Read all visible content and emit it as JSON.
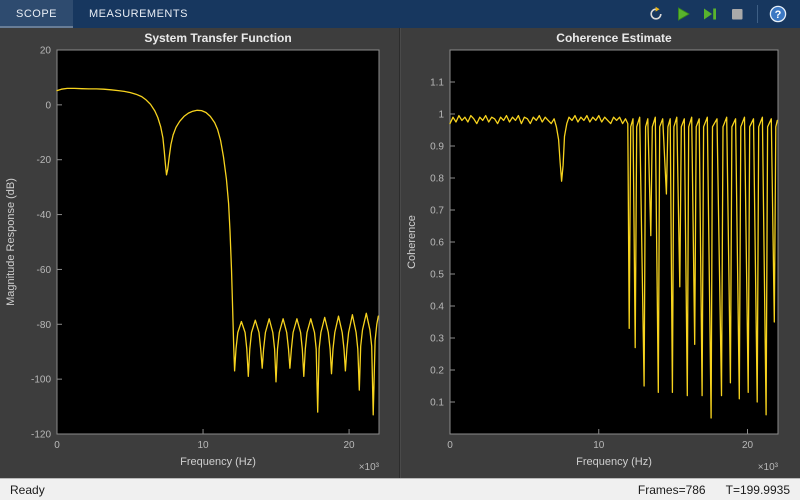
{
  "toolbar": {
    "tabs": [
      {
        "label": "SCOPE",
        "active": true
      },
      {
        "label": "MEASUREMENTS",
        "active": false
      }
    ],
    "buttons": [
      {
        "name": "replay"
      },
      {
        "name": "run"
      },
      {
        "name": "step-forward"
      },
      {
        "name": "stop"
      },
      {
        "name": "help"
      }
    ],
    "help_label": "?"
  },
  "statusbar": {
    "ready": "Ready",
    "frames": "Frames=786",
    "time": "T=199.9935"
  },
  "colors": {
    "trace_yellow": "#f7d31e",
    "toolbar_blue": "#17375f",
    "plot_background": "#000000",
    "panel_background": "#3d3d3d",
    "run_green": "#58b32d",
    "help_blue": "#3c78c3",
    "status_gray": "#f0f0f0"
  },
  "chart_data": [
    {
      "type": "line",
      "title": "System Transfer Function",
      "xlabel": "Frequency (Hz)",
      "ylabel": "Magnitude Response (dB)",
      "x_scale_label": "×10³",
      "xlim": [
        0,
        22.05
      ],
      "ylim": [
        -120,
        20
      ],
      "xticks": [
        0,
        10,
        20
      ],
      "yticks": [
        20,
        0,
        -20,
        -40,
        -60,
        -80,
        -100,
        -120
      ],
      "grid": false,
      "legend": null,
      "line_color": "#f7d31e",
      "bg": "#000000",
      "axis_color": "#8c8c8c",
      "series": [
        {
          "name": "magnitude-response",
          "points": [
            [
              0,
              5.2
            ],
            [
              0.3,
              5.7
            ],
            [
              0.7,
              6
            ],
            [
              1.2,
              6
            ],
            [
              1.7,
              5.9
            ],
            [
              2.2,
              5.8
            ],
            [
              2.7,
              5.8
            ],
            [
              3.2,
              5.7
            ],
            [
              3.7,
              5.5
            ],
            [
              4.2,
              5.2
            ],
            [
              4.6,
              4.9
            ],
            [
              5,
              4.5
            ],
            [
              5.4,
              3.9
            ],
            [
              5.8,
              3
            ],
            [
              6.1,
              1.8
            ],
            [
              6.4,
              0.2
            ],
            [
              6.7,
              -2.2
            ],
            [
              6.9,
              -4.6
            ],
            [
              7.1,
              -8
            ],
            [
              7.25,
              -12
            ],
            [
              7.35,
              -17
            ],
            [
              7.43,
              -22
            ],
            [
              7.5,
              -25.5
            ],
            [
              7.58,
              -23.5
            ],
            [
              7.68,
              -19
            ],
            [
              7.8,
              -14.5
            ],
            [
              7.95,
              -11
            ],
            [
              8.15,
              -8.2
            ],
            [
              8.4,
              -6
            ],
            [
              8.7,
              -4.2
            ],
            [
              9,
              -3
            ],
            [
              9.3,
              -2.3
            ],
            [
              9.6,
              -2
            ],
            [
              9.9,
              -2.1
            ],
            [
              10.2,
              -2.8
            ],
            [
              10.5,
              -4.2
            ],
            [
              10.8,
              -6.5
            ],
            [
              11,
              -9
            ],
            [
              11.2,
              -13
            ],
            [
              11.4,
              -19
            ],
            [
              11.6,
              -27
            ],
            [
              11.75,
              -36
            ],
            [
              11.85,
              -46
            ],
            [
              11.95,
              -60
            ],
            [
              12.03,
              -75
            ],
            [
              12.1,
              -88
            ],
            [
              12.16,
              -97
            ],
            [
              12.26,
              -89
            ],
            [
              12.38,
              -83
            ],
            [
              12.63,
              -79
            ],
            [
              12.88,
              -83
            ],
            [
              13,
              -89
            ],
            [
              13.1,
              -99
            ],
            [
              13.2,
              -89
            ],
            [
              13.32,
              -83
            ],
            [
              13.58,
              -78.5
            ],
            [
              13.83,
              -83
            ],
            [
              13.95,
              -89
            ],
            [
              14.05,
              -96
            ],
            [
              14.15,
              -89
            ],
            [
              14.27,
              -83
            ],
            [
              14.53,
              -78
            ],
            [
              14.78,
              -83
            ],
            [
              14.9,
              -89
            ],
            [
              15,
              -101
            ],
            [
              15.1,
              -89
            ],
            [
              15.22,
              -83
            ],
            [
              15.48,
              -78
            ],
            [
              15.73,
              -83
            ],
            [
              15.85,
              -89
            ],
            [
              15.95,
              -96
            ],
            [
              16.05,
              -89
            ],
            [
              16.17,
              -83
            ],
            [
              16.43,
              -78
            ],
            [
              16.68,
              -83
            ],
            [
              16.8,
              -89
            ],
            [
              16.9,
              -99
            ],
            [
              17,
              -89
            ],
            [
              17.12,
              -83
            ],
            [
              17.38,
              -78
            ],
            [
              17.63,
              -83
            ],
            [
              17.75,
              -89
            ],
            [
              17.85,
              -112
            ],
            [
              17.95,
              -89
            ],
            [
              18.07,
              -83
            ],
            [
              18.33,
              -77.5
            ],
            [
              18.58,
              -83
            ],
            [
              18.7,
              -89
            ],
            [
              18.8,
              -98
            ],
            [
              18.9,
              -89
            ],
            [
              19.02,
              -83
            ],
            [
              19.28,
              -77
            ],
            [
              19.53,
              -83
            ],
            [
              19.65,
              -89
            ],
            [
              19.75,
              -97
            ],
            [
              19.85,
              -89
            ],
            [
              19.97,
              -83
            ],
            [
              20.23,
              -76.5
            ],
            [
              20.48,
              -83
            ],
            [
              20.6,
              -89
            ],
            [
              20.7,
              -104
            ],
            [
              20.8,
              -88
            ],
            [
              20.92,
              -82
            ],
            [
              21.18,
              -76
            ],
            [
              21.43,
              -82
            ],
            [
              21.55,
              -88
            ],
            [
              21.65,
              -113
            ],
            [
              21.78,
              -86
            ],
            [
              21.9,
              -80
            ],
            [
              22,
              -77
            ]
          ]
        }
      ]
    },
    {
      "type": "line",
      "title": "Coherence Estimate",
      "xlabel": "Frequency (Hz)",
      "ylabel": "Coherence",
      "x_scale_label": "×10³",
      "xlim": [
        0,
        22.05
      ],
      "ylim": [
        0,
        1.2
      ],
      "xticks": [
        0,
        10,
        20
      ],
      "yticks": [
        1.1,
        1,
        0.9,
        0.8,
        0.7,
        0.6,
        0.5,
        0.4,
        0.3,
        0.2,
        0.1
      ],
      "grid": false,
      "legend": null,
      "line_color": "#f7d31e",
      "bg": "#000000",
      "axis_color": "#8c8c8c",
      "series": [
        {
          "name": "coherence",
          "points": [
            [
              0,
              0.97
            ],
            [
              0.2,
              0.99
            ],
            [
              0.4,
              0.975
            ],
            [
              0.6,
              0.995
            ],
            [
              0.8,
              0.98
            ],
            [
              1,
              0.99
            ],
            [
              1.2,
              0.975
            ],
            [
              1.4,
              0.995
            ],
            [
              1.6,
              0.985
            ],
            [
              1.8,
              0.97
            ],
            [
              2,
              0.99
            ],
            [
              2.2,
              0.98
            ],
            [
              2.4,
              0.995
            ],
            [
              2.6,
              0.975
            ],
            [
              2.8,
              0.99
            ],
            [
              3,
              0.985
            ],
            [
              3.2,
              0.97
            ],
            [
              3.4,
              0.99
            ],
            [
              3.6,
              0.98
            ],
            [
              3.8,
              0.995
            ],
            [
              4,
              0.975
            ],
            [
              4.2,
              0.99
            ],
            [
              4.4,
              0.98
            ],
            [
              4.6,
              0.995
            ],
            [
              4.8,
              0.97
            ],
            [
              5,
              0.99
            ],
            [
              5.2,
              0.985
            ],
            [
              5.4,
              0.97
            ],
            [
              5.6,
              0.99
            ],
            [
              5.8,
              0.98
            ],
            [
              6,
              0.995
            ],
            [
              6.2,
              0.975
            ],
            [
              6.4,
              0.99
            ],
            [
              6.6,
              0.98
            ],
            [
              6.8,
              0.97
            ],
            [
              7,
              0.985
            ],
            [
              7.15,
              0.96
            ],
            [
              7.3,
              0.92
            ],
            [
              7.4,
              0.85
            ],
            [
              7.5,
              0.79
            ],
            [
              7.6,
              0.84
            ],
            [
              7.7,
              0.93
            ],
            [
              7.85,
              0.97
            ],
            [
              8,
              0.99
            ],
            [
              8.2,
              0.98
            ],
            [
              8.4,
              0.995
            ],
            [
              8.6,
              0.975
            ],
            [
              8.8,
              0.99
            ],
            [
              9,
              0.98
            ],
            [
              9.2,
              0.995
            ],
            [
              9.4,
              0.975
            ],
            [
              9.6,
              0.99
            ],
            [
              9.8,
              0.98
            ],
            [
              10,
              0.995
            ],
            [
              10.2,
              0.975
            ],
            [
              10.4,
              0.99
            ],
            [
              10.6,
              0.98
            ],
            [
              10.8,
              0.97
            ],
            [
              11,
              0.99
            ],
            [
              11.2,
              0.98
            ],
            [
              11.4,
              0.99
            ],
            [
              11.6,
              0.97
            ],
            [
              11.8,
              0.985
            ],
            [
              11.95,
              0.97
            ],
            [
              12.05,
              0.33
            ],
            [
              12.15,
              0.96
            ],
            [
              12.3,
              0.985
            ],
            [
              12.45,
              0.27
            ],
            [
              12.55,
              0.96
            ],
            [
              12.75,
              0.99
            ],
            [
              13.05,
              0.15
            ],
            [
              13.15,
              0.96
            ],
            [
              13.3,
              0.985
            ],
            [
              13.5,
              0.62
            ],
            [
              13.6,
              0.96
            ],
            [
              13.8,
              0.99
            ],
            [
              14,
              0.13
            ],
            [
              14.1,
              0.96
            ],
            [
              14.3,
              0.985
            ],
            [
              14.55,
              0.75
            ],
            [
              14.65,
              0.96
            ],
            [
              14.8,
              0.985
            ],
            [
              14.95,
              0.13
            ],
            [
              15.05,
              0.96
            ],
            [
              15.25,
              0.99
            ],
            [
              15.45,
              0.46
            ],
            [
              15.55,
              0.96
            ],
            [
              15.75,
              0.985
            ],
            [
              15.95,
              0.12
            ],
            [
              16.05,
              0.96
            ],
            [
              16.25,
              0.99
            ],
            [
              16.45,
              0.28
            ],
            [
              16.55,
              0.96
            ],
            [
              16.75,
              0.985
            ],
            [
              16.95,
              0.12
            ],
            [
              17.05,
              0.96
            ],
            [
              17.3,
              0.99
            ],
            [
              17.55,
              0.05
            ],
            [
              17.65,
              0.96
            ],
            [
              17.95,
              0.985
            ],
            [
              18.25,
              0.12
            ],
            [
              18.35,
              0.96
            ],
            [
              18.6,
              0.99
            ],
            [
              18.85,
              0.16
            ],
            [
              18.95,
              0.96
            ],
            [
              19.2,
              0.985
            ],
            [
              19.45,
              0.11
            ],
            [
              19.55,
              0.96
            ],
            [
              19.8,
              0.99
            ],
            [
              20.05,
              0.13
            ],
            [
              20.15,
              0.96
            ],
            [
              20.4,
              0.985
            ],
            [
              20.65,
              0.1
            ],
            [
              20.75,
              0.96
            ],
            [
              21,
              0.99
            ],
            [
              21.25,
              0.06
            ],
            [
              21.35,
              0.96
            ],
            [
              21.6,
              0.985
            ],
            [
              21.8,
              0.35
            ],
            [
              21.9,
              0.96
            ],
            [
              22,
              0.98
            ]
          ]
        }
      ]
    }
  ]
}
